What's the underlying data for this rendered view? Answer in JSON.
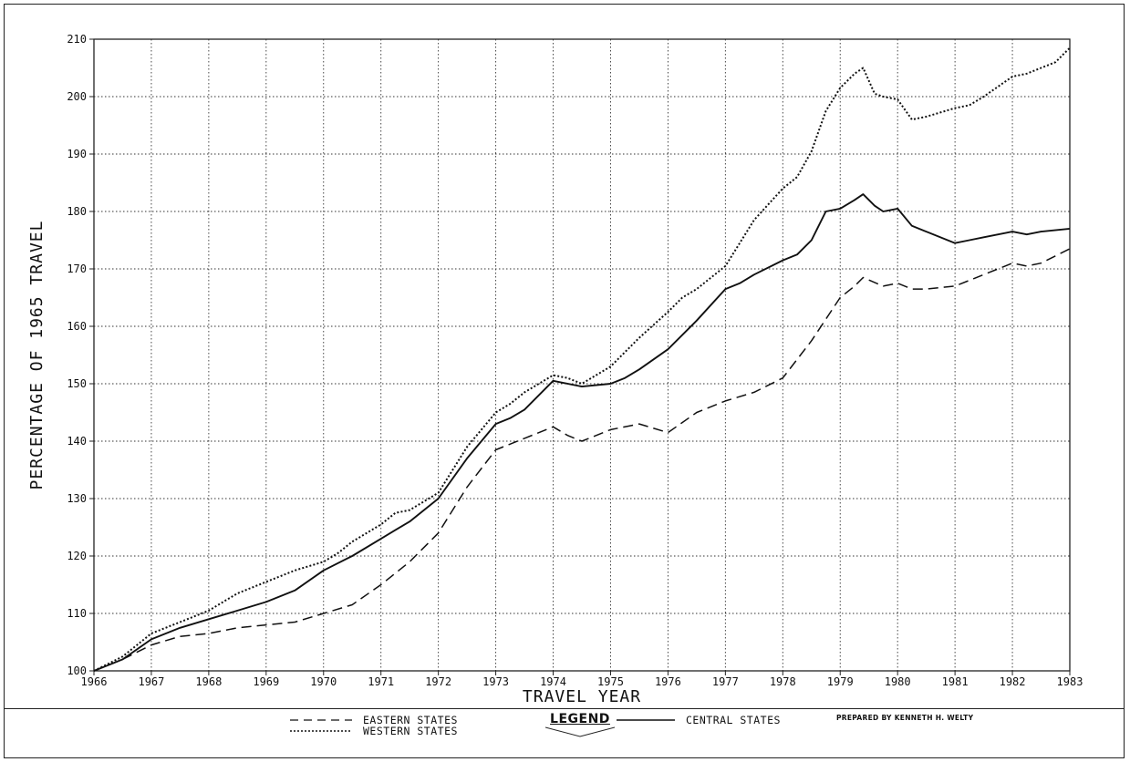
{
  "chart_data": {
    "type": "line",
    "xlabel": "TRAVEL YEAR",
    "ylabel": "PERCENTAGE OF 1965 TRAVEL",
    "xlim": [
      1966,
      1983
    ],
    "ylim": [
      100,
      210
    ],
    "xticks": [
      1966,
      1967,
      1968,
      1969,
      1970,
      1971,
      1972,
      1973,
      1974,
      1975,
      1976,
      1977,
      1978,
      1979,
      1980,
      1981,
      1982,
      1983
    ],
    "yticks": [
      100,
      110,
      120,
      130,
      140,
      150,
      160,
      170,
      180,
      190,
      200,
      210
    ],
    "grid": true,
    "legend_position": "bottom",
    "series": [
      {
        "name": "WESTERN STATES",
        "style": "dotted",
        "x": [
          1966,
          1966.5,
          1967,
          1967.5,
          1968,
          1968.25,
          1968.5,
          1969,
          1969.5,
          1970,
          1970.25,
          1970.5,
          1971,
          1971.25,
          1971.5,
          1972,
          1972.5,
          1973,
          1973.25,
          1973.5,
          1974,
          1974.25,
          1974.5,
          1975,
          1975.5,
          1976,
          1976.25,
          1976.5,
          1977,
          1977.25,
          1977.5,
          1978,
          1978.25,
          1978.5,
          1978.75,
          1979,
          1979.25,
          1979.4,
          1979.6,
          1979.75,
          1980,
          1980.25,
          1980.5,
          1981,
          1981.25,
          1981.5,
          1982,
          1982.25,
          1982.5,
          1982.75,
          1983
        ],
        "values": [
          100,
          102.5,
          106.5,
          108.5,
          110.5,
          112,
          113.5,
          115.5,
          117.5,
          119,
          120.5,
          122.5,
          125.5,
          127.5,
          128,
          131,
          139,
          145,
          146.5,
          148.5,
          151.5,
          151,
          150,
          153,
          158,
          162.5,
          165,
          166.5,
          170.5,
          174.5,
          178.5,
          184,
          186,
          190.5,
          197.5,
          201.5,
          204,
          205,
          200.5,
          200,
          199.5,
          196,
          196.5,
          198,
          198.5,
          200,
          203.5,
          204,
          205,
          206,
          208.5
        ]
      },
      {
        "name": "CENTRAL STATES",
        "style": "solid",
        "x": [
          1966,
          1966.5,
          1967,
          1967.5,
          1968,
          1968.5,
          1969,
          1969.5,
          1970,
          1970.5,
          1971,
          1971.25,
          1971.5,
          1972,
          1972.5,
          1973,
          1973.25,
          1973.5,
          1974,
          1974.5,
          1975,
          1975.25,
          1975.5,
          1976,
          1976.5,
          1977,
          1977.25,
          1977.5,
          1978,
          1978.25,
          1978.5,
          1978.75,
          1979,
          1979.25,
          1979.4,
          1979.6,
          1979.75,
          1980,
          1980.25,
          1980.5,
          1981,
          1981.25,
          1981.5,
          1982,
          1982.25,
          1982.5,
          1983
        ],
        "values": [
          100,
          102,
          105.5,
          107.5,
          109,
          110.5,
          112,
          114,
          117.5,
          120,
          123,
          124.5,
          126,
          130,
          137,
          143,
          144,
          145.5,
          150.5,
          149.5,
          150,
          151,
          152.5,
          156,
          161,
          166.5,
          167.5,
          169,
          171.5,
          172.5,
          175,
          180,
          180.5,
          182,
          183,
          181,
          180,
          180.5,
          177.5,
          176.5,
          174.5,
          175,
          175.5,
          176.5,
          176,
          176.5,
          177
        ]
      },
      {
        "name": "EASTERN STATES",
        "style": "dashed",
        "x": [
          1966,
          1966.5,
          1967,
          1967.5,
          1968,
          1968.5,
          1969,
          1969.5,
          1970,
          1970.5,
          1971,
          1971.5,
          1972,
          1972.5,
          1973,
          1973.5,
          1974,
          1974.25,
          1974.5,
          1975,
          1975.5,
          1976,
          1976.5,
          1977,
          1977.5,
          1978,
          1978.5,
          1979,
          1979.25,
          1979.4,
          1979.75,
          1980,
          1980.25,
          1980.5,
          1981,
          1981.5,
          1982,
          1982.25,
          1982.5,
          1983
        ],
        "values": [
          100,
          102,
          104.5,
          106,
          106.5,
          107.5,
          108,
          108.5,
          110,
          111.5,
          115,
          119,
          124,
          132,
          138.5,
          140.5,
          142.5,
          141,
          140,
          142,
          143,
          141.5,
          145,
          147,
          148.5,
          151,
          157.5,
          165,
          167,
          168.5,
          167,
          167.5,
          166.5,
          166.5,
          167,
          169,
          171,
          170.5,
          171,
          173.5
        ]
      }
    ]
  },
  "legend": {
    "title": "LEGEND",
    "items": [
      "EASTERN STATES",
      "WESTERN STATES",
      "CENTRAL STATES"
    ]
  },
  "credit": "PREPARED BY KENNETH H. WELTY"
}
